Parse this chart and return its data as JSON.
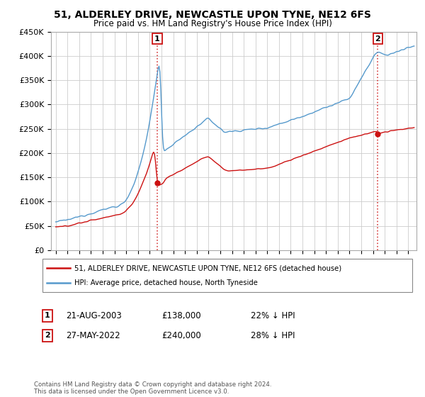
{
  "title": "51, ALDERLEY DRIVE, NEWCASTLE UPON TYNE, NE12 6FS",
  "subtitle": "Price paid vs. HM Land Registry's House Price Index (HPI)",
  "ylabel_ticks": [
    "£0",
    "£50K",
    "£100K",
    "£150K",
    "£200K",
    "£250K",
    "£300K",
    "£350K",
    "£400K",
    "£450K"
  ],
  "ytick_values": [
    0,
    50000,
    100000,
    150000,
    200000,
    250000,
    300000,
    350000,
    400000,
    450000
  ],
  "hpi_color": "#5599cc",
  "price_color": "#cc1111",
  "marker1_x": 2003.64,
  "marker1_value": 138000,
  "marker2_x": 2022.41,
  "marker2_value": 240000,
  "legend_line1": "51, ALDERLEY DRIVE, NEWCASTLE UPON TYNE, NE12 6FS (detached house)",
  "legend_line2": "HPI: Average price, detached house, North Tyneside",
  "footer": "Contains HM Land Registry data © Crown copyright and database right 2024.\nThis data is licensed under the Open Government Licence v3.0.",
  "bg_color": "#ffffff",
  "grid_color": "#cccccc"
}
